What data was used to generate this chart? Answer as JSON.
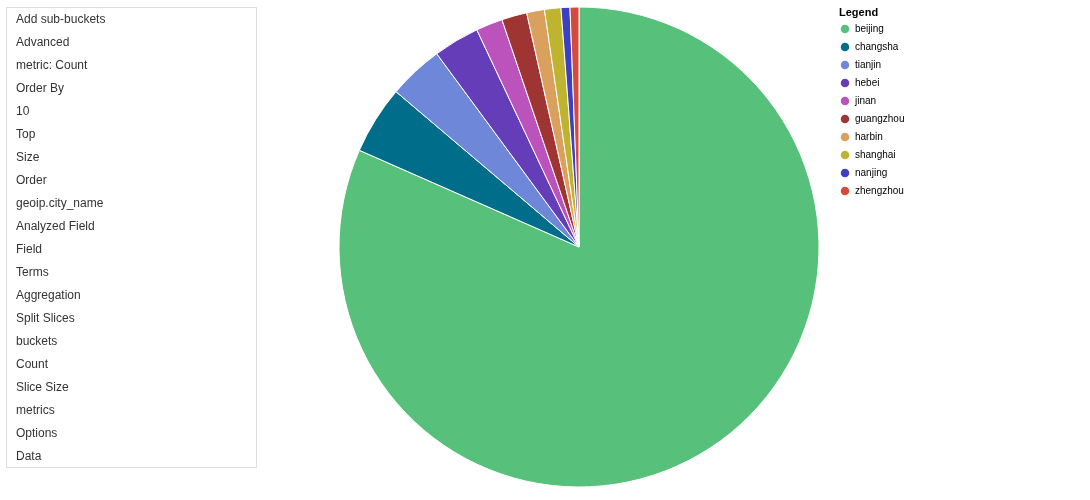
{
  "chart_data": [
    {
      "type": "other",
      "annotations": [
        "Data",
        "Options",
        "metrics",
        "Slice Size",
        "Count",
        "buckets",
        "Split Slices",
        "Aggregation",
        "Terms",
        "Field",
        "Analyzed Field",
        "geoip.city_name",
        "Order",
        "Size",
        "Top",
        "10",
        "Order By",
        "metric: Count",
        "Advanced",
        "Add sub-buckets"
      ]
    },
    {
      "type": "pie",
      "legend_title": "Legend",
      "legend": "top right",
      "categories": [
        "beijing",
        "changsha",
        "tianjin",
        "hebei",
        "jinan",
        "guangzhou",
        "harbin",
        "shanghai",
        "nanjing",
        "zhengzhou"
      ],
      "values": [
        81.6,
        4.6,
        3.7,
        3.1,
        1.8,
        1.7,
        1.2,
        1.1,
        0.6,
        0.6
      ],
      "colors": [
        "#57c17b",
        "#006e8a",
        "#6f87d8",
        "#663db8",
        "#bc52bc",
        "#9e3533",
        "#daa05d",
        "#bfb42f",
        "#3f3fc1",
        "#d54b3b"
      ]
    }
  ]
}
